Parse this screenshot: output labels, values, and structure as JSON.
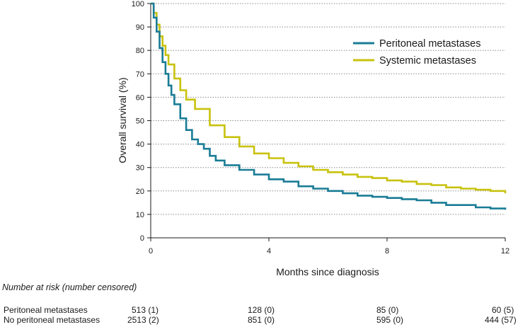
{
  "chart_data": {
    "type": "line",
    "title": "",
    "xlabel": "Months since diagnosis",
    "ylabel": "Overall survival  (%)",
    "xlim": [
      0,
      12
    ],
    "ylim": [
      0,
      100
    ],
    "xticks": [
      0,
      4,
      8,
      12
    ],
    "yticks": [
      0,
      10,
      20,
      30,
      40,
      50,
      60,
      70,
      80,
      90,
      100
    ],
    "grid": "horizontal dotted",
    "legend_position": "top-right",
    "series": [
      {
        "name": "Peritoneal metastases",
        "color": "#1a7c96",
        "x": [
          0,
          0.1,
          0.2,
          0.3,
          0.4,
          0.5,
          0.6,
          0.7,
          0.8,
          1.0,
          1.2,
          1.4,
          1.6,
          1.8,
          2.0,
          2.2,
          2.5,
          3.0,
          3.5,
          4.0,
          4.5,
          5.0,
          5.5,
          6.0,
          6.5,
          7.0,
          7.5,
          8.0,
          8.5,
          9.0,
          9.5,
          10.0,
          10.5,
          11.0,
          11.5,
          12.0
        ],
        "y": [
          100,
          94,
          88,
          81,
          75,
          70,
          65,
          61,
          57,
          51,
          46,
          42,
          40,
          38,
          35,
          33,
          31,
          29,
          27,
          25,
          24,
          22,
          21,
          20,
          19,
          18,
          17.5,
          17,
          16.5,
          16,
          15,
          14,
          14,
          13,
          12.5,
          12
        ]
      },
      {
        "name": "Systemic metastases",
        "color": "#c8c20e",
        "x": [
          0,
          0.1,
          0.2,
          0.3,
          0.4,
          0.5,
          0.6,
          0.8,
          1.0,
          1.2,
          1.5,
          2.0,
          2.5,
          3.0,
          3.5,
          4.0,
          4.5,
          5.0,
          5.5,
          6.0,
          6.5,
          7.0,
          7.5,
          8.0,
          8.5,
          9.0,
          9.5,
          10.0,
          10.5,
          11.0,
          11.5,
          12.0
        ],
        "y": [
          100,
          96,
          91,
          86,
          82,
          78,
          74,
          68,
          63,
          59,
          55,
          48,
          43,
          39,
          36,
          34,
          32,
          30.5,
          29,
          28,
          27,
          26,
          25.5,
          24.5,
          24,
          23,
          22.5,
          21.5,
          21,
          20.5,
          20,
          19
        ]
      }
    ]
  },
  "risk_table": {
    "title": "Number at risk (number censored)",
    "rows": [
      {
        "label": "Peritoneal metastases",
        "values": [
          "513 (1)",
          "128 (0)",
          "85 (0)",
          "60 (5)"
        ]
      },
      {
        "label": "No peritoneal metastases",
        "values": [
          "2513 (2)",
          "851 (0)",
          "595 (0)",
          "444 (57)"
        ]
      }
    ]
  }
}
